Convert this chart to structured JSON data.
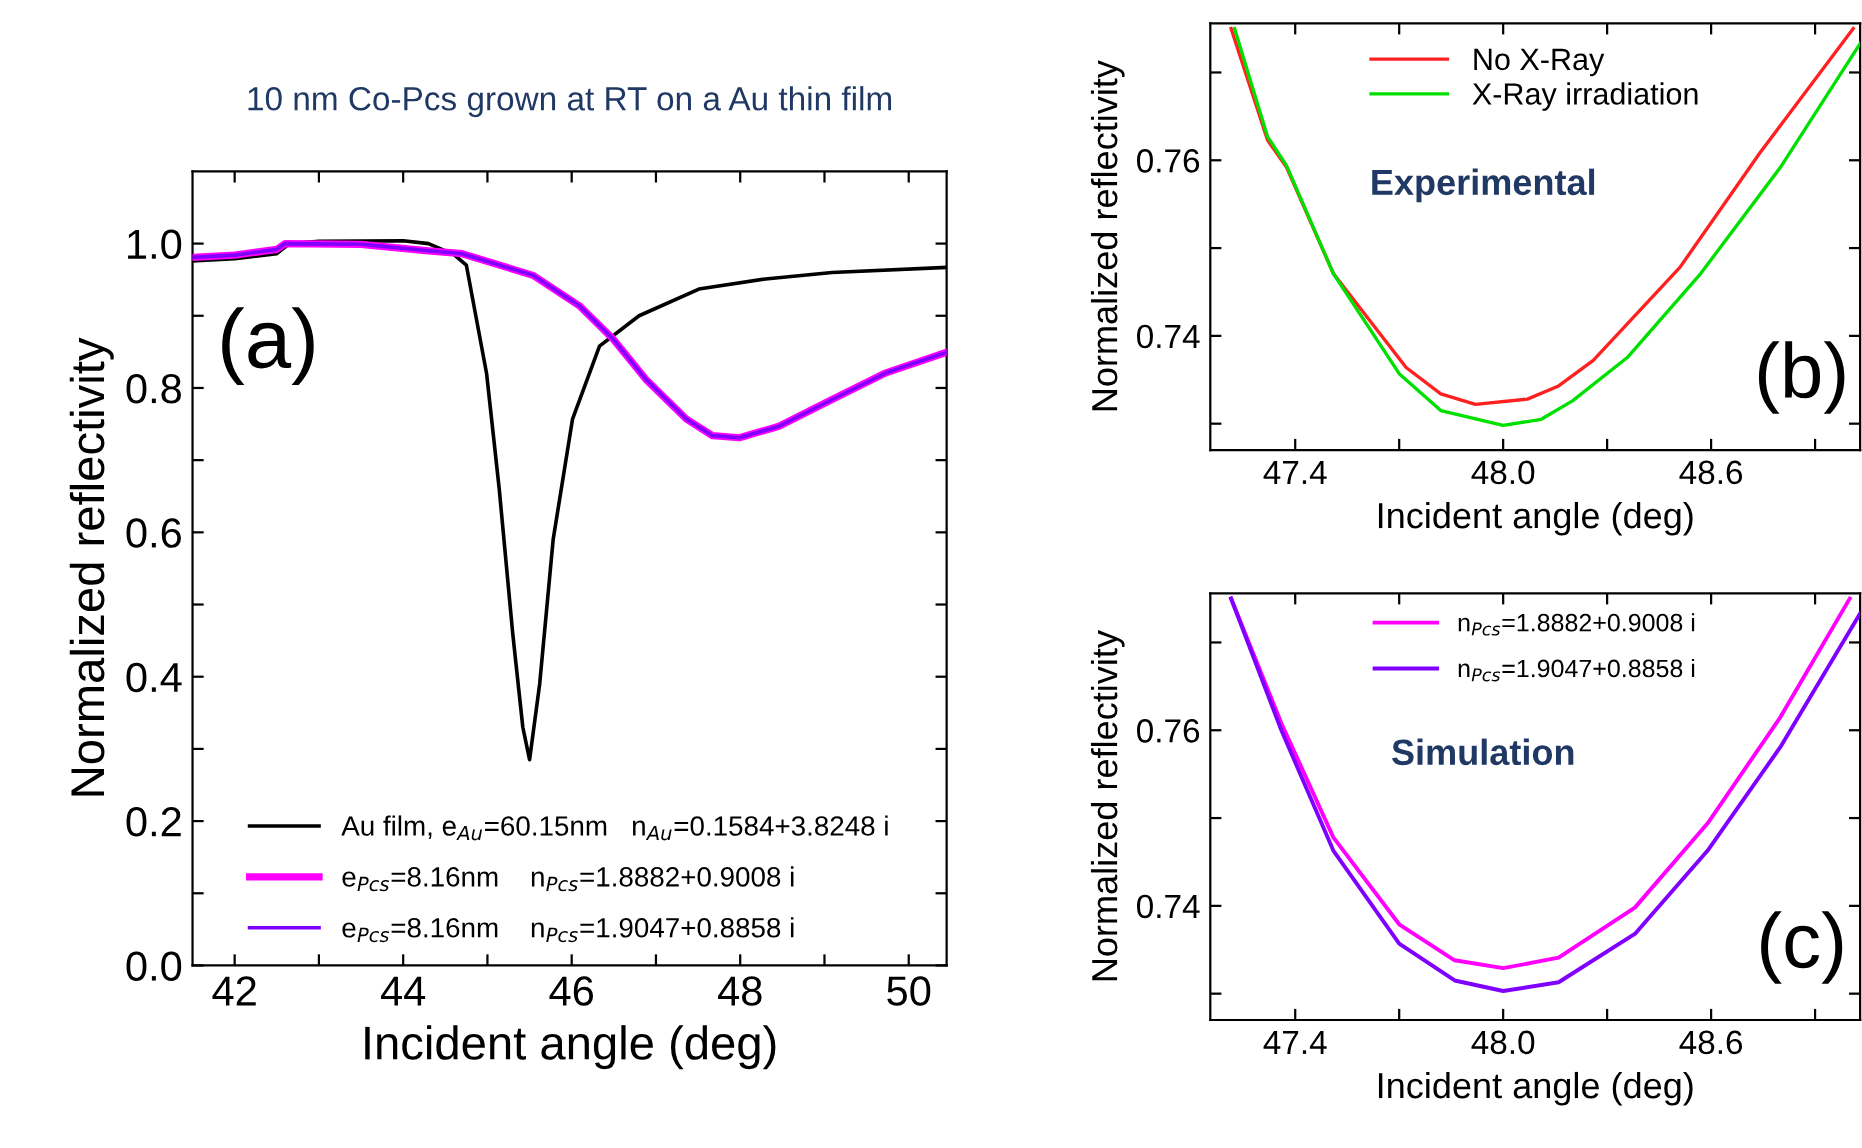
{
  "chart_data": [
    {
      "type": "line",
      "title": "10 nm Co-Pcs grown at RT on a Au thin film",
      "xlabel": "Incident angle (deg)",
      "ylabel": "Normalized reflectivity",
      "xlim": [
        41.5,
        50.45
      ],
      "ylim": [
        0,
        1.1
      ],
      "xticks": [
        42,
        {
          "value": 43,
          "label": null
        },
        44,
        {
          "value": 45,
          "label": null
        },
        46,
        {
          "value": 47,
          "label": null
        },
        48,
        {
          "value": 49,
          "label": null
        },
        50
      ],
      "yticks": [
        {
          "value": 0,
          "label": "0.0"
        },
        {
          "value": 0.1,
          "label": null
        },
        0.2,
        {
          "value": 0.3,
          "label": null
        },
        0.4,
        {
          "value": 0.5,
          "label": null
        },
        0.6,
        {
          "value": 0.7,
          "label": null
        },
        0.8,
        {
          "value": 0.9,
          "label": null
        },
        {
          "value": 1,
          "label": "1.0"
        }
      ],
      "legend": "bottom",
      "annotations": [
        "(a)"
      ],
      "series": [
        {
          "name": "Au film, e$_{Au}$=60.15nm   n$_{Au}$=0.1584+3.8248 i",
          "color": "#000000",
          "x": [
            41.5,
            42.0,
            42.5,
            42.65,
            43.0,
            44.0,
            44.3,
            44.6,
            44.75,
            44.99,
            45.14,
            45.3,
            45.42,
            45.5,
            45.62,
            45.78,
            46.01,
            46.33,
            46.8,
            47.51,
            48.3,
            49.09,
            50.44
          ],
          "values": [
            0.976,
            0.979,
            0.986,
            1.0,
            1.003,
            1.004,
            1.0,
            0.985,
            0.97,
            0.82,
            0.66,
            0.46,
            0.33,
            0.285,
            0.39,
            0.59,
            0.757,
            0.858,
            0.9,
            0.937,
            0.951,
            0.96,
            0.967
          ]
        },
        {
          "name": "e$_{Pcs}$=8.16nm    n$_{Pcs}$=1.8882+0.9008 i",
          "color": "#ff00ff",
          "x": [
            41.5,
            42.0,
            42.5,
            42.6,
            43.5,
            44.3,
            44.7,
            45.54,
            46.09,
            46.49,
            46.88,
            47.36,
            47.67,
            47.99,
            48.46,
            49.09,
            49.73,
            50.44
          ],
          "values": [
            0.981,
            0.984,
            0.992,
            1.0,
            0.999,
            0.99,
            0.986,
            0.956,
            0.914,
            0.868,
            0.812,
            0.757,
            0.734,
            0.731,
            0.747,
            0.784,
            0.821,
            0.849
          ]
        },
        {
          "name": "e$_{Pcs}$=8.16nm    n$_{Pcs}$=1.9047+0.8858 i",
          "color": "#7f00ff",
          "x": [
            41.5,
            42.0,
            42.5,
            42.6,
            43.5,
            44.3,
            44.7,
            45.54,
            46.09,
            46.49,
            46.88,
            47.36,
            47.67,
            47.99,
            48.46,
            49.09,
            49.73,
            50.44
          ],
          "values": [
            0.981,
            0.984,
            0.992,
            1.0,
            0.999,
            0.99,
            0.986,
            0.956,
            0.914,
            0.868,
            0.812,
            0.757,
            0.734,
            0.731,
            0.747,
            0.784,
            0.821,
            0.849
          ]
        }
      ]
    },
    {
      "type": "line",
      "xlabel": "Incident angle (deg)",
      "ylabel": "Normalized reflectivity",
      "xlim": [
        47.155,
        49.03
      ],
      "ylim": [
        0.727,
        0.7756
      ],
      "xticks": [
        47.4,
        {
          "value": 47.7,
          "label": null
        },
        {
          "value": 48.0,
          "label": "48.0"
        },
        {
          "value": 48.3,
          "label": null
        },
        48.6,
        {
          "value": 48.9,
          "label": null
        }
      ],
      "yticks": [
        {
          "value": 0.73,
          "label": null
        },
        0.74,
        {
          "value": 0.75,
          "label": null
        },
        0.76,
        {
          "value": 0.77,
          "label": null
        }
      ],
      "legend": "top",
      "annotations": [
        "Experimental",
        "(b)"
      ],
      "series": [
        {
          "name": "No X-Ray",
          "color": "#ff2020",
          "x": [
            47.215,
            47.32,
            47.375,
            47.51,
            47.72,
            47.82,
            47.92,
            48.07,
            48.16,
            48.26,
            48.51,
            48.74,
            49.01
          ],
          "values": [
            0.775,
            0.7623,
            0.7592,
            0.7471,
            0.7364,
            0.7334,
            0.7322,
            0.7328,
            0.7343,
            0.7372,
            0.7478,
            0.7608,
            0.775
          ]
        },
        {
          "name": "X-Ray irradiation",
          "color": "#00e000",
          "x": [
            47.225,
            47.32,
            47.375,
            47.51,
            47.7,
            47.82,
            48.0,
            48.11,
            48.2,
            48.36,
            48.57,
            48.8,
            49.03
          ],
          "values": [
            0.775,
            0.7627,
            0.7594,
            0.7471,
            0.7357,
            0.7315,
            0.7298,
            0.7305,
            0.7326,
            0.7376,
            0.7471,
            0.7592,
            0.7733
          ]
        }
      ]
    },
    {
      "type": "line",
      "xlabel": "Incident angle (deg)",
      "ylabel": "Normalized reflectivity",
      "xlim": [
        47.155,
        49.03
      ],
      "ylim": [
        0.727,
        0.7756
      ],
      "xticks": [
        47.4,
        {
          "value": 47.7,
          "label": null
        },
        {
          "value": 48.0,
          "label": "48.0"
        },
        {
          "value": 48.3,
          "label": null
        },
        48.6,
        {
          "value": 48.9,
          "label": null
        }
      ],
      "yticks": [
        {
          "value": 0.73,
          "label": null
        },
        0.74,
        {
          "value": 0.75,
          "label": null
        },
        0.76,
        {
          "value": 0.77,
          "label": null
        }
      ],
      "legend": "top",
      "annotations": [
        "Simulation",
        "(c)"
      ],
      "series": [
        {
          "name": "n$_{Pcs}$=1.8882+0.9008 i",
          "color": "#ff00ff",
          "x": [
            47.215,
            47.36,
            47.51,
            47.7,
            47.86,
            48.0,
            48.16,
            48.38,
            48.59,
            48.8,
            49.0
          ],
          "values": [
            0.775,
            0.7608,
            0.7478,
            0.7379,
            0.7338,
            0.7329,
            0.7341,
            0.7398,
            0.7494,
            0.7615,
            0.775
          ]
        },
        {
          "name": "n$_{Pcs}$=1.9047+0.8858 i",
          "color": "#7f00ff",
          "x": [
            47.215,
            47.36,
            47.51,
            47.7,
            47.86,
            48.0,
            48.16,
            48.38,
            48.59,
            48.8,
            49.03
          ],
          "values": [
            0.775,
            0.76,
            0.7463,
            0.7357,
            0.7315,
            0.7303,
            0.7313,
            0.7368,
            0.7463,
            0.7581,
            0.7733
          ]
        }
      ]
    }
  ]
}
